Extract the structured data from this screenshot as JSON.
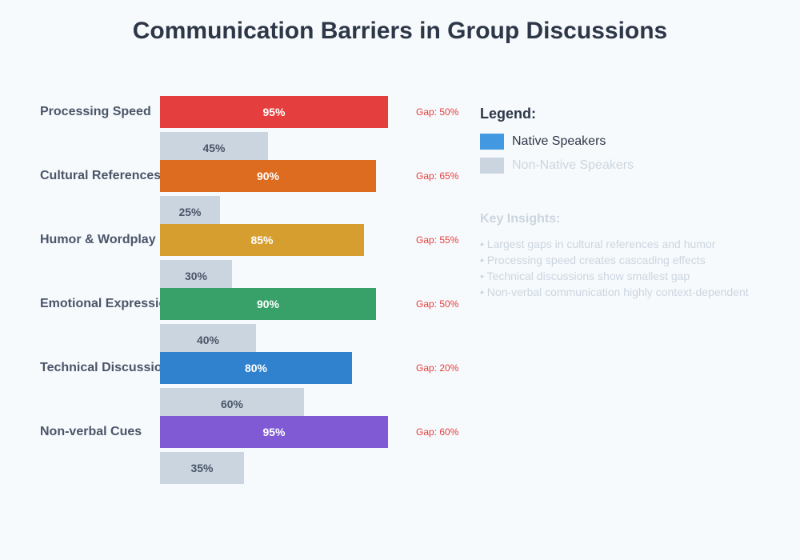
{
  "title": "Communication Barriers in Group Discussions",
  "chart_data": {
    "type": "bar",
    "orientation": "horizontal",
    "title": "Communication Barriers in Group Discussions",
    "categories": [
      "Processing Speed",
      "Cultural References",
      "Humor & Wordplay",
      "Emotional Expression",
      "Technical Discussion",
      "Non-verbal Cues"
    ],
    "series": [
      {
        "name": "Native Speakers",
        "values": [
          95,
          90,
          85,
          90,
          80,
          95
        ],
        "colors": [
          "#e53e3e",
          "#dd6b20",
          "#d69e2e",
          "#38a169",
          "#3182ce",
          "#805ad5"
        ]
      },
      {
        "name": "Non-Native Speakers",
        "values": [
          45,
          25,
          30,
          40,
          60,
          35
        ],
        "color": "#cbd5e0"
      }
    ],
    "gaps": [
      "Gap: 50%",
      "Gap: 65%",
      "Gap: 55%",
      "Gap: 50%",
      "Gap: 20%",
      "Gap: 60%"
    ],
    "xlim": [
      0,
      100
    ],
    "value_suffix": "%",
    "legend_position": "right"
  },
  "legend": {
    "title": "Legend:",
    "items": [
      {
        "label": "Native Speakers",
        "color": "#4299e1",
        "text_color": "#2d3748"
      },
      {
        "label": "Non-Native Speakers",
        "color": "#cbd5e0",
        "text_color": "#cbd5e0"
      }
    ]
  },
  "insights": {
    "title": "Key Insights:",
    "items": [
      "• Largest gaps in cultural references and humor",
      "• Processing speed creates cascading effects",
      "• Technical discussions show smallest gap",
      "• Non-verbal communication highly context-dependent"
    ]
  }
}
